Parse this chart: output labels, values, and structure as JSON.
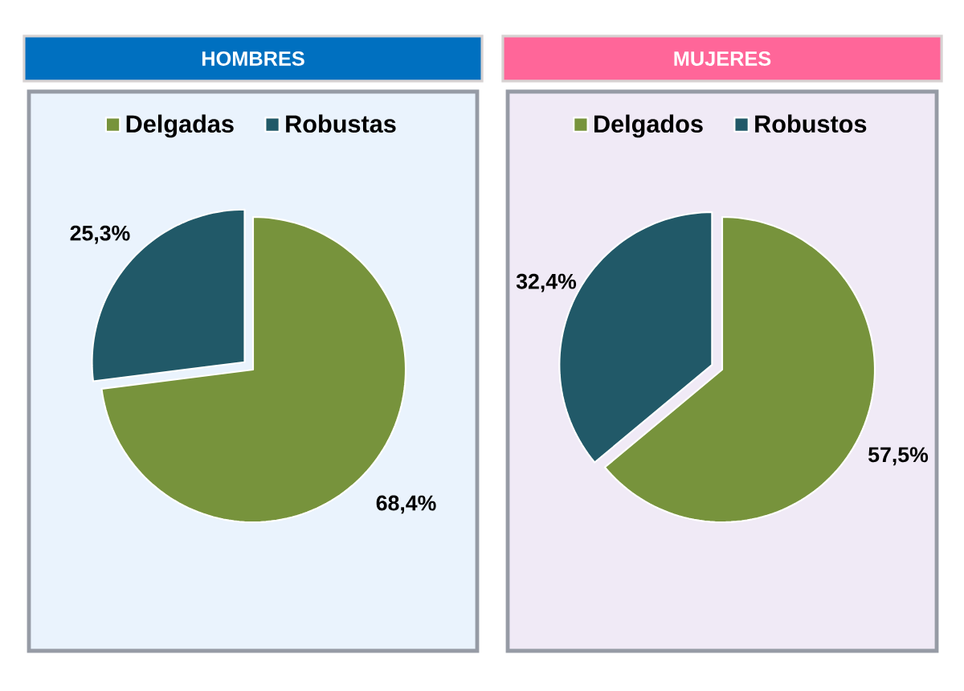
{
  "chart_data": [
    {
      "type": "pie",
      "title": "HOMBRES",
      "categories": [
        "Delgadas",
        "Robustas"
      ],
      "values": [
        68.4,
        25.3
      ],
      "colors": [
        "#77933c",
        "#215968"
      ],
      "value_labels": [
        "68,4%",
        "25,3%"
      ],
      "legend": "top"
    },
    {
      "type": "pie",
      "title": "MUJERES",
      "categories": [
        "Delgados",
        "Robustos"
      ],
      "values": [
        57.5,
        32.4
      ],
      "colors": [
        "#77933c",
        "#215968"
      ],
      "value_labels": [
        "57,5%",
        "32,4%"
      ],
      "legend": "top"
    }
  ]
}
